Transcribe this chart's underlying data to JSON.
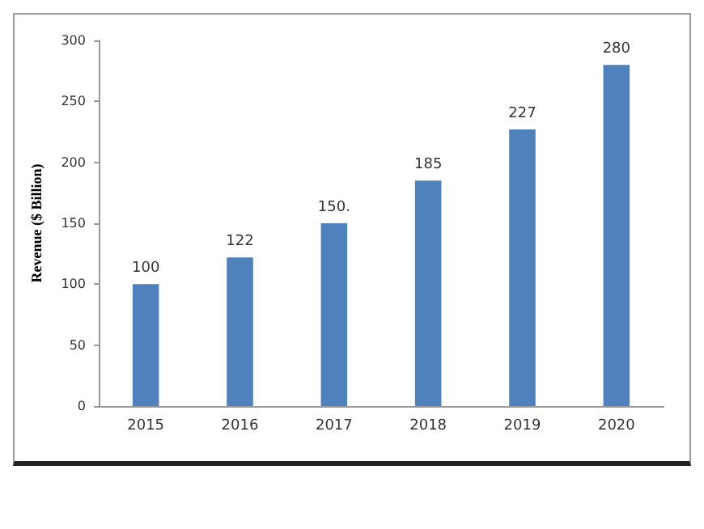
{
  "chart_data": {
    "type": "bar",
    "ylabel": "Revenue ($ Billion)",
    "categories": [
      "2015",
      "2016",
      "2017",
      "2018",
      "2019",
      "2020"
    ],
    "values": [
      100,
      122,
      150,
      185,
      227,
      280
    ],
    "value_labels": [
      "100",
      "122",
      "150.",
      "185",
      "227",
      "280"
    ],
    "color": "#4f81bd",
    "ylim": [
      0,
      300
    ],
    "yticks": [
      0,
      50,
      100,
      150,
      200,
      250,
      300
    ],
    "grid": false
  }
}
